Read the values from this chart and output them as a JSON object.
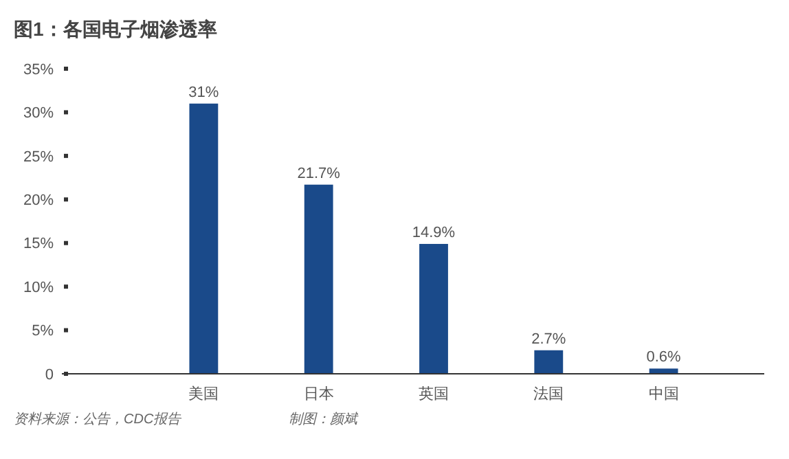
{
  "chart_data": {
    "type": "bar",
    "title": "图1：各国电子烟渗透率",
    "categories": [
      "美国",
      "日本",
      "英国",
      "法国",
      "中国"
    ],
    "values": [
      31,
      21.7,
      14.9,
      2.7,
      0.6
    ],
    "value_labels": [
      "31%",
      "21.7%",
      "14.9%",
      "2.7%",
      "0.6%"
    ],
    "color": "#1a4a8a",
    "ylim": [
      0,
      35
    ],
    "yticks": [
      {
        "value": 0,
        "label": "0"
      },
      {
        "value": 5,
        "label": "5%"
      },
      {
        "value": 10,
        "label": "10%"
      },
      {
        "value": 15,
        "label": "15%"
      },
      {
        "value": 20,
        "label": "20%"
      },
      {
        "value": 25,
        "label": "25%"
      },
      {
        "value": 30,
        "label": "30%"
      },
      {
        "value": 35,
        "label": "35%"
      }
    ],
    "grid": false,
    "annotations": [
      "资料来源：公告，CDC报告",
      "制图：颜斌"
    ]
  }
}
